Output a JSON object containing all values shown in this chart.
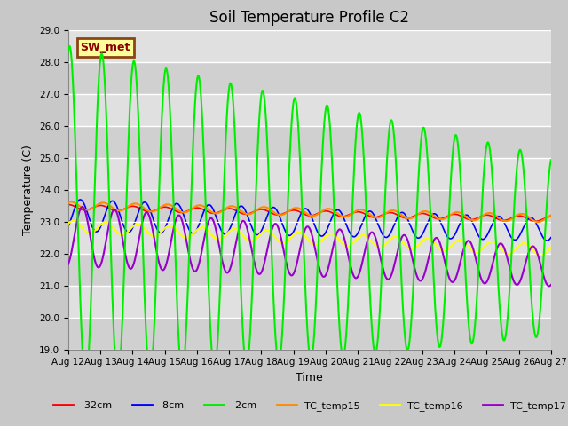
{
  "title": "Soil Temperature Profile C2",
  "xlabel": "Time",
  "ylabel": "Temperature (C)",
  "ylim": [
    19.0,
    29.0
  ],
  "yticks": [
    19.0,
    20.0,
    21.0,
    22.0,
    23.0,
    24.0,
    25.0,
    26.0,
    27.0,
    28.0,
    29.0
  ],
  "plot_bg_color": "#dcdcdc",
  "band_colors": [
    "#d8d8d8",
    "#e8e8e8"
  ],
  "annotation_text": "SW_met",
  "annotation_bg": "#ffff99",
  "annotation_border": "#8B4513",
  "annotation_text_color": "#8B0000",
  "lines": {
    "-32cm": {
      "color": "#ff0000",
      "lw": 1.2,
      "zorder": 2
    },
    "-8cm": {
      "color": "#0000ff",
      "lw": 1.2,
      "zorder": 2
    },
    "-2cm": {
      "color": "#00ee00",
      "lw": 1.5,
      "zorder": 4
    },
    "TC_temp15": {
      "color": "#ff8c00",
      "lw": 1.5,
      "zorder": 3
    },
    "TC_temp16": {
      "color": "#ffff00",
      "lw": 1.5,
      "zorder": 3
    },
    "TC_temp17": {
      "color": "#9900cc",
      "lw": 1.5,
      "zorder": 3
    }
  },
  "x_tick_labels": [
    "Aug 12",
    "Aug 13",
    "Aug 14",
    "Aug 15",
    "Aug 16",
    "Aug 17",
    "Aug 18",
    "Aug 19",
    "Aug 20",
    "Aug 21",
    "Aug 22",
    "Aug 23",
    "Aug 24",
    "Aug 25",
    "Aug 26",
    "Aug 27"
  ],
  "title_fontsize": 12,
  "label_fontsize": 9,
  "tick_fontsize": 7.5
}
